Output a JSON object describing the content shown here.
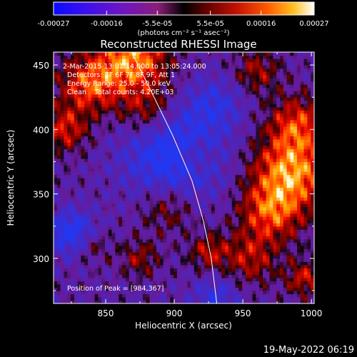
{
  "chart_data": {
    "type": "heatmap",
    "title": "Reconstructed RHESSI Image",
    "xlabel": "Heliocentric X (arcsec)",
    "ylabel": "Heliocentric Y (arcsec)",
    "xlim": [
      812,
      1002
    ],
    "ylim": [
      265,
      460
    ],
    "x_ticks": [
      850,
      900,
      950,
      1000
    ],
    "y_ticks": [
      300,
      350,
      400,
      450
    ],
    "x_tick_labels": [
      "850",
      "900",
      "950",
      "1000"
    ],
    "y_tick_labels": [
      "300",
      "350",
      "400",
      "450"
    ],
    "colorbar": {
      "ticks": [
        -0.00027,
        -0.00016,
        -5.5e-05,
        5.5e-05,
        0.00016,
        0.00027
      ],
      "tick_labels": [
        "-0.00027",
        "-0.00016",
        "-5.5e-05",
        "5.5e-05",
        "0.00016",
        "0.00027"
      ],
      "range": [
        -0.00027,
        0.00027
      ],
      "unit_label": "(photons cm⁻² s⁻¹ asec⁻²)",
      "colormap": "rainbow-to-hot"
    },
    "annotations": {
      "time_range": "2-Mar-2015 13:01:14.000 to 13:05:24.000",
      "detectors": "Detectors: 3F 6F 7F 8F 9F, Att 1",
      "energy": "Energy Range: 25.0 - 50.0 keV",
      "clean": "Clean    Total counts: 4.20E+03",
      "peak": "Position of Peak = [984,367]"
    },
    "peak": {
      "x": 984,
      "y": 367
    },
    "limb_curve": [
      [
        869,
        460
      ],
      [
        883,
        430
      ],
      [
        899,
        395
      ],
      [
        913,
        360
      ],
      [
        921,
        330
      ],
      [
        927,
        300
      ],
      [
        931,
        265
      ]
    ],
    "bright_regions": [
      {
        "x": 870,
        "y": 455,
        "sigma": 18,
        "amp": 1.0
      },
      {
        "x": 838,
        "y": 435,
        "sigma": 16,
        "amp": 0.8
      },
      {
        "x": 820,
        "y": 400,
        "sigma": 12,
        "amp": 0.65
      },
      {
        "x": 880,
        "y": 415,
        "sigma": 14,
        "amp": 0.55
      },
      {
        "x": 985,
        "y": 367,
        "sigma": 20,
        "amp": 1.05
      },
      {
        "x": 990,
        "y": 405,
        "sigma": 15,
        "amp": 0.7
      },
      {
        "x": 970,
        "y": 335,
        "sigma": 16,
        "amp": 0.75
      },
      {
        "x": 955,
        "y": 300,
        "sigma": 14,
        "amp": 0.55
      },
      {
        "x": 925,
        "y": 305,
        "sigma": 10,
        "amp": 0.55
      },
      {
        "x": 895,
        "y": 340,
        "sigma": 14,
        "amp": 0.5
      },
      {
        "x": 875,
        "y": 300,
        "sigma": 10,
        "amp": 0.45
      },
      {
        "x": 960,
        "y": 445,
        "sigma": 12,
        "amp": 0.5
      },
      {
        "x": 995,
        "y": 285,
        "sigma": 10,
        "amp": 0.6
      },
      {
        "x": 840,
        "y": 310,
        "sigma": 9,
        "amp": 0.35
      },
      {
        "x": 915,
        "y": 380,
        "sigma": 10,
        "amp": 0.4
      }
    ],
    "dark_regions": [
      {
        "x": 900,
        "y": 380,
        "sigma": 25,
        "amp": -0.85
      },
      {
        "x": 825,
        "y": 320,
        "sigma": 12,
        "amp": -0.8
      },
      {
        "x": 930,
        "y": 420,
        "sigma": 15,
        "amp": -0.45
      },
      {
        "x": 930,
        "y": 270,
        "sigma": 12,
        "amp": -0.5
      }
    ]
  },
  "footer": {
    "date": "19-May-2022 06:19"
  }
}
